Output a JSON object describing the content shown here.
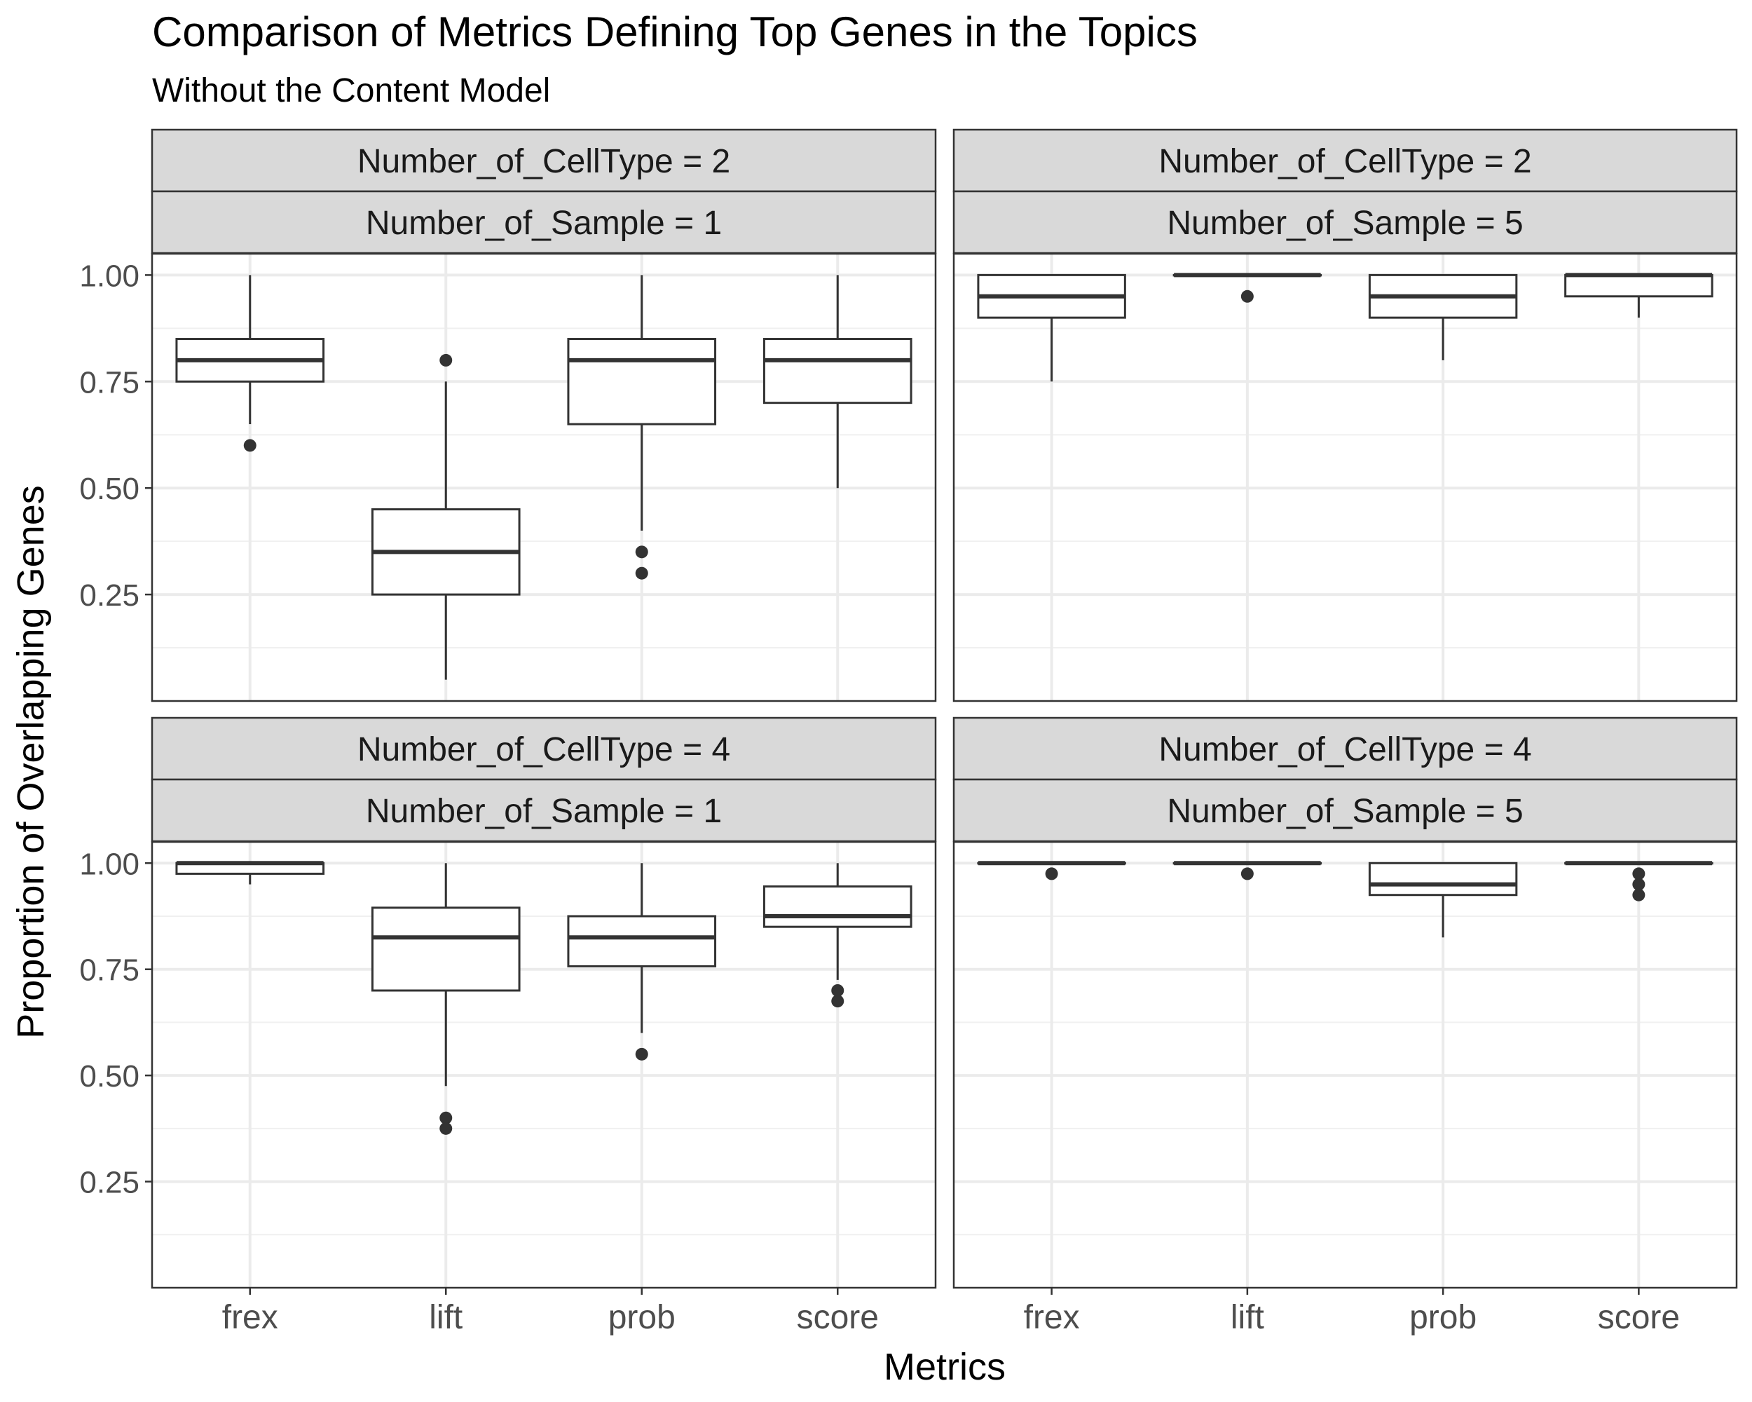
{
  "chart_data": {
    "type": "boxplot",
    "title": "Comparison of Metrics Defining Top Genes in the Topics",
    "subtitle": "Without the Content Model",
    "xlabel": "Metrics",
    "ylabel": "Proportion of Overlapping Genes",
    "categories": [
      "frex",
      "lift",
      "prob",
      "score"
    ],
    "ylim": [
      0.0,
      1.05
    ],
    "yticks": [
      0.25,
      0.5,
      0.75,
      1.0
    ],
    "ytick_labels": [
      "0.25",
      "0.50",
      "0.75",
      "1.00"
    ],
    "grid": true,
    "facets": [
      {
        "strip_top": "Number_of_CellType = 2",
        "strip_bottom": "Number_of_Sample = 1",
        "boxes": [
          {
            "category": "frex",
            "lower_whisker": 0.65,
            "q1": 0.75,
            "median": 0.8,
            "q3": 0.85,
            "upper_whisker": 1.0,
            "outliers": [
              0.6
            ]
          },
          {
            "category": "lift",
            "lower_whisker": 0.05,
            "q1": 0.25,
            "median": 0.35,
            "q3": 0.45,
            "upper_whisker": 0.75,
            "outliers": [
              0.8
            ]
          },
          {
            "category": "prob",
            "lower_whisker": 0.4,
            "q1": 0.65,
            "median": 0.8,
            "q3": 0.85,
            "upper_whisker": 1.0,
            "outliers": [
              0.35,
              0.3
            ]
          },
          {
            "category": "score",
            "lower_whisker": 0.5,
            "q1": 0.7,
            "median": 0.8,
            "q3": 0.85,
            "upper_whisker": 1.0,
            "outliers": []
          }
        ]
      },
      {
        "strip_top": "Number_of_CellType = 2",
        "strip_bottom": "Number_of_Sample = 5",
        "boxes": [
          {
            "category": "frex",
            "lower_whisker": 0.75,
            "q1": 0.9,
            "median": 0.95,
            "q3": 1.0,
            "upper_whisker": 1.0,
            "outliers": []
          },
          {
            "category": "lift",
            "lower_whisker": 1.0,
            "q1": 1.0,
            "median": 1.0,
            "q3": 1.0,
            "upper_whisker": 1.0,
            "outliers": [
              0.95
            ]
          },
          {
            "category": "prob",
            "lower_whisker": 0.8,
            "q1": 0.9,
            "median": 0.95,
            "q3": 1.0,
            "upper_whisker": 1.0,
            "outliers": []
          },
          {
            "category": "score",
            "lower_whisker": 0.9,
            "q1": 0.95,
            "median": 1.0,
            "q3": 1.0,
            "upper_whisker": 1.0,
            "outliers": []
          }
        ]
      },
      {
        "strip_top": "Number_of_CellType = 4",
        "strip_bottom": "Number_of_Sample = 1",
        "boxes": [
          {
            "category": "frex",
            "lower_whisker": 0.95,
            "q1": 0.975,
            "median": 1.0,
            "q3": 1.0,
            "upper_whisker": 1.0,
            "outliers": []
          },
          {
            "category": "lift",
            "lower_whisker": 0.475,
            "q1": 0.7,
            "median": 0.825,
            "q3": 0.895,
            "upper_whisker": 1.0,
            "outliers": [
              0.4,
              0.375
            ]
          },
          {
            "category": "prob",
            "lower_whisker": 0.6,
            "q1": 0.757,
            "median": 0.825,
            "q3": 0.875,
            "upper_whisker": 1.0,
            "outliers": [
              0.55
            ]
          },
          {
            "category": "score",
            "lower_whisker": 0.725,
            "q1": 0.85,
            "median": 0.875,
            "q3": 0.945,
            "upper_whisker": 1.0,
            "outliers": [
              0.7,
              0.675
            ]
          }
        ]
      },
      {
        "strip_top": "Number_of_CellType = 4",
        "strip_bottom": "Number_of_Sample = 5",
        "boxes": [
          {
            "category": "frex",
            "lower_whisker": 1.0,
            "q1": 1.0,
            "median": 1.0,
            "q3": 1.0,
            "upper_whisker": 1.0,
            "outliers": [
              0.975
            ]
          },
          {
            "category": "lift",
            "lower_whisker": 1.0,
            "q1": 1.0,
            "median": 1.0,
            "q3": 1.0,
            "upper_whisker": 1.0,
            "outliers": [
              0.975
            ]
          },
          {
            "category": "prob",
            "lower_whisker": 0.825,
            "q1": 0.925,
            "median": 0.95,
            "q3": 1.0,
            "upper_whisker": 1.0,
            "outliers": []
          },
          {
            "category": "score",
            "lower_whisker": 1.0,
            "q1": 1.0,
            "median": 1.0,
            "q3": 1.0,
            "upper_whisker": 1.0,
            "outliers": [
              0.975,
              0.95,
              0.925
            ]
          }
        ]
      }
    ]
  }
}
